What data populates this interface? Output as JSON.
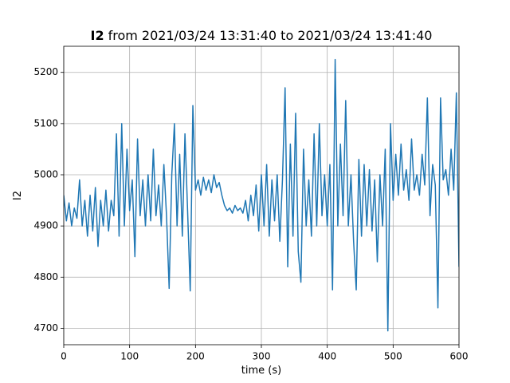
{
  "chart_data": {
    "type": "line",
    "title_variable": "I2",
    "title": "from 2021/03/24 13:31:40 to 2021/03/24 13:41:40",
    "x_label": "time (s)",
    "y_label": "I2",
    "xlim": [
      0,
      600
    ],
    "ylim": [
      4668,
      5251
    ],
    "xticks": [
      0,
      100,
      200,
      300,
      400,
      500,
      600
    ],
    "yticks": [
      4700,
      4800,
      4900,
      5000,
      5100,
      5200
    ],
    "grid": true,
    "x": [
      0,
      4,
      8,
      12,
      16,
      20,
      24,
      28,
      32,
      36,
      40,
      44,
      48,
      52,
      56,
      60,
      64,
      68,
      72,
      76,
      80,
      84,
      88,
      92,
      96,
      100,
      104,
      108,
      112,
      116,
      120,
      124,
      128,
      132,
      136,
      140,
      144,
      148,
      152,
      156,
      160,
      164,
      168,
      172,
      176,
      180,
      184,
      188,
      192,
      196,
      200,
      204,
      208,
      212,
      216,
      220,
      224,
      228,
      232,
      236,
      240,
      244,
      248,
      252,
      256,
      260,
      264,
      268,
      272,
      276,
      280,
      284,
      288,
      292,
      296,
      300,
      304,
      308,
      312,
      316,
      320,
      324,
      328,
      332,
      336,
      340,
      344,
      348,
      352,
      356,
      360,
      364,
      368,
      372,
      376,
      380,
      384,
      388,
      392,
      396,
      400,
      404,
      408,
      412,
      416,
      420,
      424,
      428,
      432,
      436,
      440,
      444,
      448,
      452,
      456,
      460,
      464,
      468,
      472,
      476,
      480,
      484,
      488,
      492,
      496,
      500,
      504,
      508,
      512,
      516,
      520,
      524,
      528,
      532,
      536,
      540,
      544,
      548,
      552,
      556,
      560,
      564,
      568,
      572,
      576,
      580,
      584,
      588,
      592,
      596,
      600
    ],
    "series": [
      {
        "name": "I2",
        "color": "#1f77b4",
        "values": [
          4960,
          4910,
          4945,
          4900,
          4935,
          4915,
          4990,
          4900,
          4950,
          4880,
          4960,
          4890,
          4975,
          4860,
          4950,
          4900,
          4970,
          4890,
          4950,
          4920,
          5080,
          4880,
          5100,
          4900,
          5050,
          4930,
          4990,
          4840,
          5070,
          4920,
          4990,
          4900,
          5000,
          4910,
          5050,
          4920,
          4980,
          4900,
          5020,
          4920,
          4778,
          5000,
          5100,
          4900,
          5040,
          4880,
          5080,
          4930,
          4773,
          5135,
          4970,
          4990,
          4960,
          4995,
          4970,
          4990,
          4965,
          5000,
          4975,
          4985,
          4960,
          4940,
          4930,
          4935,
          4925,
          4940,
          4930,
          4935,
          4925,
          4950,
          4910,
          4960,
          4920,
          4980,
          4890,
          5000,
          4900,
          5020,
          4880,
          4990,
          4910,
          5000,
          4870,
          4990,
          5170,
          4820,
          5060,
          4880,
          5120,
          4850,
          4790,
          5050,
          4900,
          4990,
          4880,
          5080,
          4900,
          5100,
          4920,
          5000,
          4900,
          5020,
          4775,
          5225,
          4900,
          5060,
          4920,
          5145,
          4900,
          5000,
          4870,
          4775,
          5030,
          4880,
          5020,
          4900,
          5010,
          4890,
          4990,
          4830,
          5000,
          4900,
          5050,
          4695,
          5100,
          4950,
          5040,
          4960,
          5060,
          4970,
          5010,
          4950,
          5070,
          4970,
          5000,
          4960,
          5040,
          4980,
          5150,
          4920,
          5020,
          4980,
          4740,
          5150,
          4990,
          5010,
          4960,
          5050,
          4970,
          5160,
          4820
        ]
      }
    ]
  }
}
